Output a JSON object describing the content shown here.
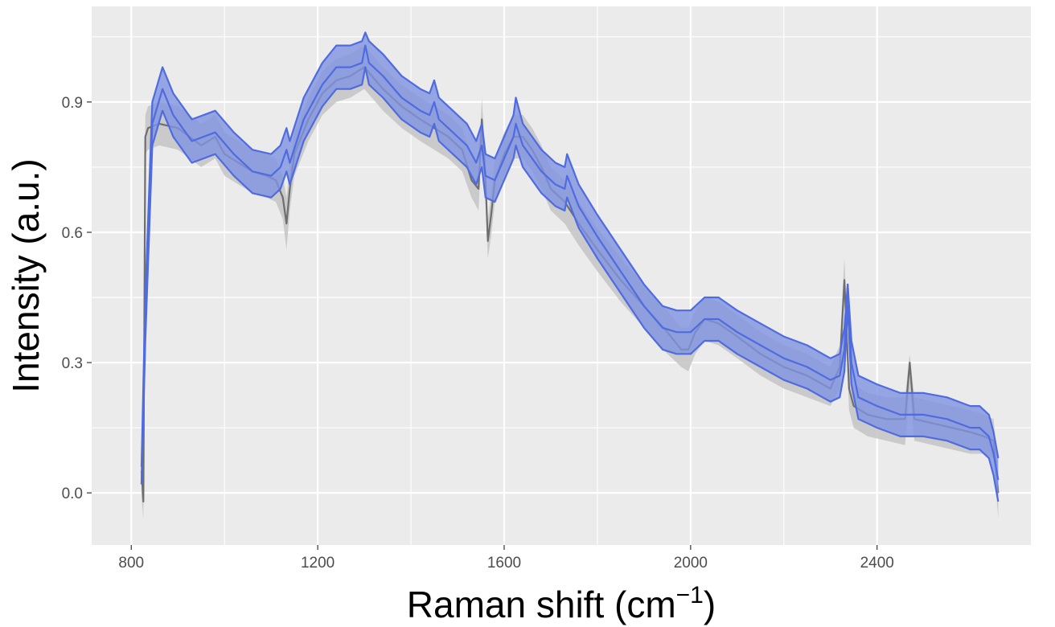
{
  "chart_data": {
    "type": "line",
    "title": "",
    "xlabel": "Raman shift (cm",
    "xlabel_superscript": "−1",
    "xlabel_suffix": ")",
    "ylabel": "Intensity (a.u.)",
    "xlim": [
      715,
      2730
    ],
    "ylim": [
      -0.12,
      1.12
    ],
    "x_ticks": [
      800,
      1200,
      1600,
      2000,
      2400
    ],
    "x_tick_labels": [
      "800",
      "1200",
      "1600",
      "2000",
      "2400"
    ],
    "y_ticks": [
      0.0,
      0.3,
      0.6,
      0.9
    ],
    "y_tick_labels": [
      "0.0",
      "0.3",
      "0.6",
      "0.9"
    ],
    "grid": true,
    "panel_background": "#ebebeb",
    "observed_spectrum": {
      "line_color": "#6e6e6e",
      "band_color": "#c4c4c4",
      "x": [
        822,
        826,
        830,
        836,
        860,
        900,
        950,
        980,
        1000,
        1030,
        1060,
        1090,
        1110,
        1125,
        1133,
        1140,
        1150,
        1180,
        1210,
        1240,
        1270,
        1300,
        1340,
        1380,
        1420,
        1450,
        1480,
        1510,
        1530,
        1545,
        1552,
        1560,
        1565,
        1572,
        1580,
        1600,
        1620,
        1640,
        1660,
        1680,
        1700,
        1730,
        1760,
        1800,
        1850,
        1900,
        1950,
        1980,
        1995,
        2010,
        2030,
        2060,
        2100,
        2150,
        2200,
        2250,
        2300,
        2320,
        2330,
        2340,
        2350,
        2380,
        2420,
        2460,
        2470,
        2480,
        2520,
        2560,
        2600,
        2630,
        2650,
        2660
      ],
      "y": [
        0.05,
        -0.02,
        0.82,
        0.84,
        0.85,
        0.84,
        0.8,
        0.82,
        0.78,
        0.76,
        0.74,
        0.73,
        0.72,
        0.68,
        0.62,
        0.7,
        0.78,
        0.86,
        0.92,
        0.95,
        0.96,
        0.98,
        0.93,
        0.89,
        0.86,
        0.84,
        0.82,
        0.79,
        0.72,
        0.7,
        0.86,
        0.72,
        0.58,
        0.64,
        0.72,
        0.78,
        0.82,
        0.82,
        0.79,
        0.75,
        0.7,
        0.67,
        0.62,
        0.56,
        0.49,
        0.43,
        0.37,
        0.33,
        0.33,
        0.37,
        0.4,
        0.39,
        0.36,
        0.32,
        0.29,
        0.27,
        0.24,
        0.29,
        0.49,
        0.24,
        0.2,
        0.18,
        0.17,
        0.17,
        0.3,
        0.17,
        0.16,
        0.15,
        0.14,
        0.13,
        0.12,
        0.0
      ],
      "lower": [
        -0.01,
        -0.06,
        0.78,
        0.79,
        0.8,
        0.79,
        0.75,
        0.77,
        0.73,
        0.71,
        0.69,
        0.68,
        0.67,
        0.63,
        0.56,
        0.65,
        0.73,
        0.81,
        0.87,
        0.9,
        0.91,
        0.93,
        0.88,
        0.84,
        0.81,
        0.79,
        0.77,
        0.74,
        0.68,
        0.65,
        0.8,
        0.67,
        0.54,
        0.59,
        0.67,
        0.73,
        0.77,
        0.77,
        0.74,
        0.7,
        0.65,
        0.62,
        0.57,
        0.51,
        0.44,
        0.38,
        0.32,
        0.29,
        0.28,
        0.32,
        0.35,
        0.34,
        0.31,
        0.27,
        0.24,
        0.22,
        0.2,
        0.24,
        0.44,
        0.19,
        0.15,
        0.13,
        0.12,
        0.11,
        0.24,
        0.12,
        0.11,
        0.1,
        0.09,
        0.09,
        0.08,
        -0.06
      ],
      "upper": [
        0.1,
        0.02,
        0.87,
        0.89,
        0.9,
        0.89,
        0.85,
        0.87,
        0.83,
        0.81,
        0.79,
        0.78,
        0.77,
        0.73,
        0.68,
        0.75,
        0.83,
        0.91,
        0.97,
        1.0,
        1.01,
        1.03,
        0.98,
        0.94,
        0.91,
        0.89,
        0.87,
        0.84,
        0.77,
        0.75,
        0.91,
        0.77,
        0.63,
        0.69,
        0.77,
        0.83,
        0.87,
        0.87,
        0.84,
        0.8,
        0.75,
        0.72,
        0.67,
        0.61,
        0.54,
        0.48,
        0.42,
        0.38,
        0.38,
        0.42,
        0.45,
        0.44,
        0.41,
        0.37,
        0.34,
        0.32,
        0.29,
        0.34,
        0.54,
        0.29,
        0.25,
        0.23,
        0.22,
        0.22,
        0.32,
        0.22,
        0.21,
        0.2,
        0.19,
        0.18,
        0.17,
        0.04
      ]
    },
    "fitted_spectrum": {
      "line_color": "#4f6be0",
      "band_color": "#7f92e0",
      "x": [
        822,
        830,
        845,
        867,
        890,
        930,
        980,
        1020,
        1060,
        1100,
        1120,
        1133,
        1140,
        1170,
        1210,
        1240,
        1270,
        1295,
        1302,
        1310,
        1340,
        1380,
        1420,
        1440,
        1450,
        1460,
        1490,
        1520,
        1540,
        1552,
        1560,
        1580,
        1600,
        1620,
        1625,
        1640,
        1680,
        1710,
        1730,
        1735,
        1760,
        1800,
        1850,
        1900,
        1940,
        1970,
        2000,
        2030,
        2060,
        2100,
        2150,
        2200,
        2250,
        2300,
        2320,
        2330,
        2337,
        2345,
        2360,
        2400,
        2450,
        2500,
        2550,
        2600,
        2620,
        2640,
        2650,
        2660
      ],
      "y": [
        0.02,
        0.4,
        0.85,
        0.93,
        0.87,
        0.81,
        0.83,
        0.78,
        0.74,
        0.73,
        0.75,
        0.79,
        0.76,
        0.86,
        0.94,
        0.98,
        0.98,
        0.99,
        1.03,
        0.99,
        0.96,
        0.91,
        0.88,
        0.87,
        0.9,
        0.86,
        0.83,
        0.8,
        0.76,
        0.8,
        0.73,
        0.72,
        0.77,
        0.82,
        0.85,
        0.8,
        0.74,
        0.71,
        0.7,
        0.73,
        0.66,
        0.59,
        0.51,
        0.43,
        0.38,
        0.37,
        0.37,
        0.4,
        0.4,
        0.37,
        0.34,
        0.31,
        0.29,
        0.26,
        0.27,
        0.33,
        0.48,
        0.3,
        0.22,
        0.2,
        0.18,
        0.18,
        0.17,
        0.15,
        0.15,
        0.13,
        0.09,
        0.03
      ],
      "lower": [
        0.02,
        0.35,
        0.8,
        0.88,
        0.82,
        0.76,
        0.78,
        0.73,
        0.69,
        0.68,
        0.7,
        0.74,
        0.71,
        0.81,
        0.89,
        0.93,
        0.93,
        0.94,
        0.98,
        0.94,
        0.91,
        0.86,
        0.83,
        0.82,
        0.85,
        0.81,
        0.78,
        0.75,
        0.71,
        0.75,
        0.68,
        0.67,
        0.72,
        0.77,
        0.8,
        0.75,
        0.69,
        0.66,
        0.65,
        0.68,
        0.61,
        0.54,
        0.46,
        0.38,
        0.33,
        0.32,
        0.32,
        0.35,
        0.35,
        0.32,
        0.29,
        0.26,
        0.24,
        0.21,
        0.22,
        0.28,
        0.43,
        0.25,
        0.17,
        0.15,
        0.13,
        0.13,
        0.12,
        0.1,
        0.1,
        0.08,
        0.04,
        -0.02
      ],
      "upper": [
        0.06,
        0.45,
        0.9,
        0.98,
        0.92,
        0.86,
        0.88,
        0.83,
        0.79,
        0.78,
        0.8,
        0.84,
        0.81,
        0.91,
        0.99,
        1.03,
        1.03,
        1.04,
        1.06,
        1.04,
        1.01,
        0.96,
        0.93,
        0.92,
        0.95,
        0.91,
        0.88,
        0.85,
        0.81,
        0.85,
        0.78,
        0.77,
        0.82,
        0.87,
        0.91,
        0.85,
        0.79,
        0.76,
        0.75,
        0.78,
        0.71,
        0.64,
        0.56,
        0.48,
        0.43,
        0.42,
        0.42,
        0.45,
        0.45,
        0.42,
        0.39,
        0.36,
        0.34,
        0.31,
        0.32,
        0.38,
        0.48,
        0.35,
        0.27,
        0.25,
        0.23,
        0.23,
        0.22,
        0.2,
        0.2,
        0.18,
        0.14,
        0.08
      ]
    }
  }
}
